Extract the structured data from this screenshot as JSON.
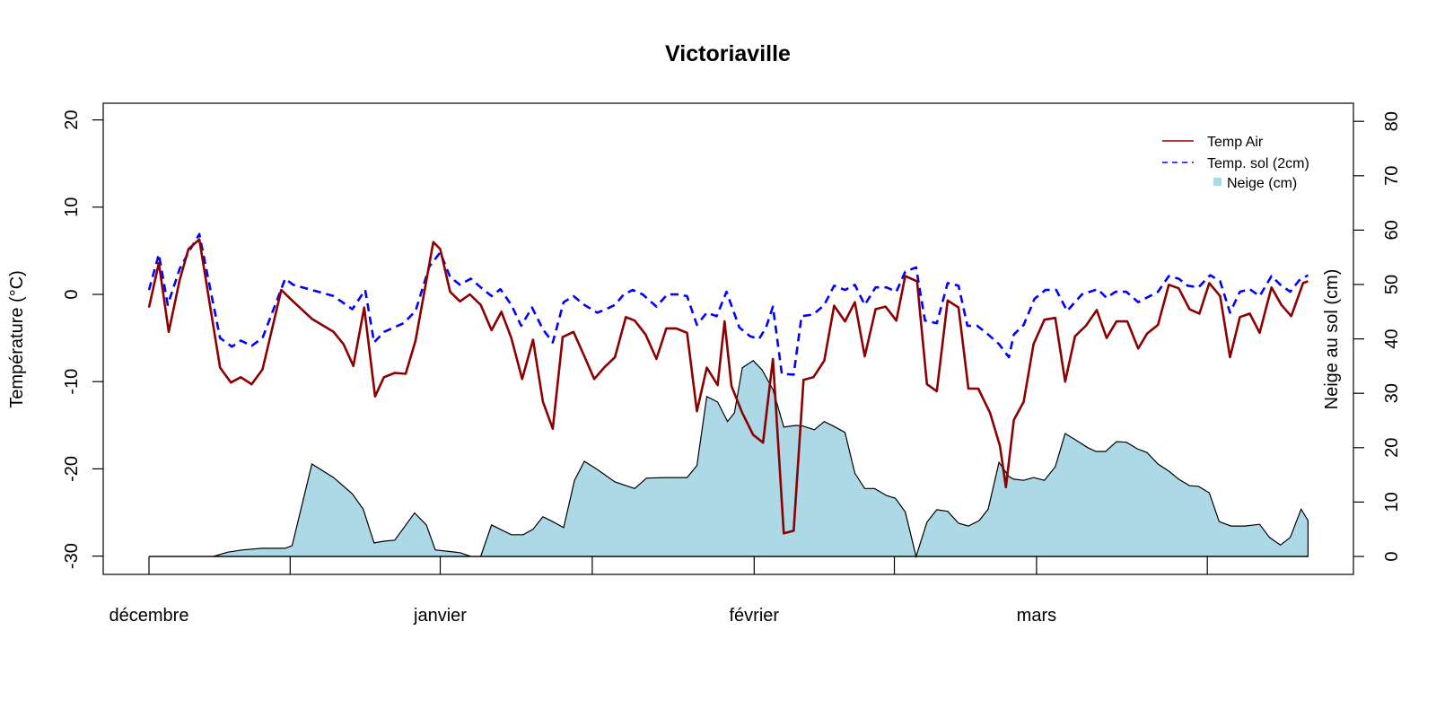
{
  "chart_data": {
    "type": "line",
    "title": "Victoriaville",
    "xlabel": "",
    "ylabel": "Température (°C)",
    "ylabel_right": "Neige au sol (cm)",
    "ylim": [
      -30,
      20
    ],
    "ylim_right": [
      0,
      80
    ],
    "xlim_days": [
      0,
      117.4
    ],
    "x_unit": "days since Dec 1 (approx.)",
    "y_ticks": [
      -30,
      -20,
      -10,
      0,
      10,
      20
    ],
    "y_ticks_right": [
      0,
      10,
      20,
      30,
      40,
      50,
      60,
      70,
      80
    ],
    "x_tick_days": [
      0,
      14.3,
      29.5,
      44.9,
      61.3,
      75.5,
      89.9,
      107.2
    ],
    "x_labels": [
      {
        "label": "décembre",
        "day": 0
      },
      {
        "label": "janvier",
        "day": 29.5
      },
      {
        "label": "février",
        "day": 61.3
      },
      {
        "label": "mars",
        "day": 89.9
      }
    ],
    "grid": false,
    "legend_position": "top-right",
    "colors": {
      "air": "#8b0000",
      "soil": "#0000ff",
      "snow": "#add8e6",
      "outline": "#000000"
    },
    "series": [
      {
        "name": "Temp Air",
        "axis": "left",
        "style": "solid",
        "x": [
          0,
          1.0,
          2.0,
          3.1,
          4.0,
          5.1,
          7.2,
          8.3,
          9.3,
          10.4,
          11.5,
          13.4,
          14.5,
          16.5,
          18.7,
          19.7,
          20.7,
          21.8,
          22.9,
          23.8,
          24.9,
          26.0,
          27.0,
          28.8,
          29.5,
          30.5,
          31.5,
          32.5,
          33.6,
          34.7,
          35.7,
          36.7,
          37.8,
          38.9,
          39.9,
          40.9,
          41.9,
          43.0,
          44.1,
          45.1,
          46.1,
          47.2,
          48.3,
          49.2,
          50.3,
          51.4,
          52.4,
          53.4,
          54.5,
          55.5,
          56.5,
          57.6,
          58.3,
          59.0,
          60.1,
          61.2,
          62.2,
          63.2,
          64.3,
          65.3,
          66.3,
          67.3,
          68.4,
          69.4,
          70.5,
          71.5,
          72.5,
          73.6,
          74.6,
          75.7,
          76.6,
          77.8,
          78.8,
          79.8,
          80.9,
          82.0,
          83.0,
          84.0,
          85.2,
          86.2,
          86.8,
          87.6,
          88.6,
          89.6,
          90.7,
          91.8,
          92.8,
          93.8,
          94.9,
          96.0,
          97.0,
          98.0,
          99.1,
          100.2,
          101.1,
          102.2,
          103.3,
          104.3,
          105.4,
          106.4,
          107.4,
          108.5,
          109.5,
          110.5,
          111.5,
          112.5,
          113.7,
          114.7,
          115.7,
          116.9,
          117.4
        ],
        "values": [
          -1.5,
          3.6,
          -4.3,
          1.6,
          5.2,
          6.3,
          -8.4,
          -10.1,
          -9.5,
          -10.3,
          -8.6,
          0.5,
          -0.7,
          -2.8,
          -4.3,
          -5.7,
          -8.2,
          -1.5,
          -11.7,
          -9.5,
          -9.0,
          -9.1,
          -5.3,
          6.0,
          5.2,
          0.3,
          -0.8,
          0.0,
          -1.2,
          -4.1,
          -2.0,
          -5.0,
          -9.7,
          -5.2,
          -12.3,
          -15.4,
          -4.9,
          -4.3,
          -7.1,
          -9.7,
          -8.4,
          -7.2,
          -2.6,
          -3.0,
          -4.6,
          -7.4,
          -3.9,
          -3.9,
          -4.4,
          -13.4,
          -8.4,
          -10.4,
          -3.1,
          -10.5,
          -13.6,
          -16.1,
          -17.0,
          -7.4,
          -27.4,
          -27.1,
          -9.8,
          -9.5,
          -7.6,
          -1.3,
          -3.1,
          -0.9,
          -7.1,
          -1.7,
          -1.4,
          -3.0,
          2.1,
          1.5,
          -10.3,
          -11.1,
          -0.7,
          -1.5,
          -10.8,
          -10.8,
          -13.6,
          -17.4,
          -22.1,
          -14.4,
          -12.3,
          -5.7,
          -2.9,
          -2.7,
          -10.0,
          -4.8,
          -3.6,
          -1.8,
          -5.0,
          -3.1,
          -3.1,
          -6.2,
          -4.5,
          -3.5,
          1.1,
          0.7,
          -1.7,
          -2.2,
          1.3,
          -0.2,
          -7.2,
          -2.6,
          -2.2,
          -4.4,
          0.8,
          -1.2,
          -2.5,
          1.3,
          1.5
        ]
      },
      {
        "name": "Temp. sol (2cm)",
        "axis": "left",
        "style": "dashed",
        "x": [
          0,
          1.0,
          1.9,
          3.1,
          4.2,
          5.1,
          7.2,
          8.4,
          9.3,
          10.4,
          11.5,
          13.8,
          14.6,
          16.5,
          18.7,
          20.6,
          21.9,
          22.8,
          23.8,
          25.8,
          27.0,
          28.4,
          29.5,
          30.5,
          31.5,
          32.6,
          33.6,
          34.7,
          35.6,
          36.7,
          37.7,
          38.8,
          39.9,
          40.9,
          42.0,
          43.0,
          44.1,
          45.4,
          46.3,
          47.2,
          48.1,
          49.0,
          50.0,
          51.4,
          52.5,
          53.5,
          54.5,
          55.5,
          56.5,
          57.5,
          58.5,
          59.8,
          60.9,
          61.8,
          62.5,
          63.2,
          64.1,
          65.3,
          66.1,
          67.3,
          68.4,
          69.4,
          70.5,
          71.5,
          72.5,
          73.6,
          74.7,
          75.7,
          76.6,
          77.7,
          78.6,
          79.8,
          80.9,
          82.0,
          82.9,
          83.9,
          85.0,
          86.1,
          87.1,
          87.6,
          88.6,
          89.7,
          90.8,
          91.9,
          93.0,
          94.5,
          96.1,
          97.0,
          97.9,
          99.0,
          100.2,
          102.2,
          103.3,
          104.3,
          105.2,
          106.3,
          107.5,
          108.5,
          109.5,
          110.5,
          111.5,
          112.5,
          113.7,
          114.6,
          115.6,
          116.5,
          117.4
        ],
        "values": [
          0.5,
          4.6,
          -1.2,
          2.9,
          5.2,
          6.9,
          -5.0,
          -6.0,
          -5.3,
          -5.9,
          -5.0,
          1.8,
          1.1,
          0.5,
          -0.2,
          -1.7,
          0.5,
          -5.5,
          -4.3,
          -3.3,
          -1.9,
          3.2,
          4.8,
          2.0,
          1.1,
          1.8,
          0.8,
          -0.2,
          0.6,
          -1.2,
          -3.6,
          -1.5,
          -4.0,
          -5.5,
          -0.9,
          -0.2,
          -1.2,
          -2.1,
          -1.7,
          -1.2,
          0.0,
          0.5,
          0.0,
          -1.4,
          0.0,
          0.0,
          -0.2,
          -3.5,
          -2.1,
          -2.5,
          0.3,
          -3.8,
          -4.8,
          -5.1,
          -3.8,
          -1.4,
          -9.1,
          -9.2,
          -2.5,
          -2.3,
          -1.2,
          1.0,
          0.5,
          1.1,
          -1.2,
          0.8,
          0.8,
          0.3,
          2.6,
          3.1,
          -3.0,
          -3.3,
          1.3,
          1.0,
          -3.6,
          -3.6,
          -4.6,
          -5.7,
          -7.2,
          -4.6,
          -3.5,
          -0.5,
          0.5,
          0.5,
          -1.9,
          0.0,
          0.6,
          -0.4,
          0.3,
          0.3,
          -0.9,
          0.3,
          2.1,
          1.8,
          1.0,
          0.8,
          2.2,
          1.5,
          -2.1,
          0.3,
          0.6,
          -0.2,
          2.1,
          1.1,
          0.3,
          1.6,
          2.2
        ]
      },
      {
        "name": "Neige (cm)",
        "axis": "right",
        "style": "area",
        "x": [
          0,
          6.5,
          8.0,
          9.5,
          11.5,
          13.8,
          14.5,
          16.5,
          18.7,
          20.6,
          21.7,
          22.8,
          23.8,
          24.9,
          26.9,
          28.1,
          29.0,
          31.5,
          32.6,
          33.6,
          34.7,
          36.7,
          37.9,
          38.9,
          39.9,
          40.9,
          42.0,
          43.1,
          44.1,
          45.4,
          47.2,
          49.2,
          50.4,
          52.3,
          54.5,
          55.5,
          56.5,
          57.6,
          58.6,
          59.3,
          60.1,
          61.2,
          62.1,
          63.2,
          64.3,
          65.5,
          66.2,
          67.4,
          68.4,
          69.4,
          70.5,
          71.5,
          72.5,
          73.5,
          74.7,
          75.6,
          76.6,
          77.7,
          78.8,
          79.8,
          80.9,
          82.0,
          83.0,
          84.1,
          85.0,
          86.1,
          87.1,
          87.6,
          88.6,
          89.6,
          90.7,
          91.8,
          92.8,
          93.8,
          95.1,
          95.9,
          96.9,
          98.0,
          99.0,
          100.1,
          101.1,
          102.2,
          103.3,
          104.3,
          105.4,
          106.3,
          107.4,
          108.4,
          109.6,
          111.0,
          112.5,
          113.5,
          114.6,
          115.6,
          116.7,
          117.4
        ],
        "values": [
          0,
          0,
          0.8,
          1.2,
          1.5,
          1.5,
          2.0,
          17.0,
          14.5,
          11.5,
          8.7,
          2.5,
          2.8,
          3.0,
          8.0,
          5.8,
          1.2,
          0.7,
          0,
          0,
          5.8,
          4.0,
          4.0,
          5.0,
          7.3,
          6.4,
          5.3,
          14.0,
          17.5,
          16.0,
          13.7,
          12.5,
          14.4,
          14.5,
          14.5,
          16.7,
          29.4,
          28.4,
          24.8,
          26.4,
          34.7,
          36.0,
          34.3,
          30.7,
          23.8,
          24.1,
          24.0,
          23.3,
          24.8,
          23.9,
          22.8,
          15.3,
          12.5,
          12.5,
          11.2,
          10.7,
          8.2,
          0,
          6.3,
          8.6,
          8.3,
          6.1,
          5.6,
          6.6,
          8.7,
          17.3,
          14.7,
          14.2,
          14.0,
          14.5,
          14.0,
          16.5,
          22.6,
          21.5,
          20.0,
          19.3,
          19.3,
          21.1,
          21.0,
          19.8,
          19.1,
          17.0,
          15.7,
          14.2,
          13.0,
          12.9,
          11.7,
          6.4,
          5.6,
          5.6,
          5.9,
          3.5,
          2.1,
          3.5,
          8.7,
          6.6
        ]
      }
    ]
  }
}
